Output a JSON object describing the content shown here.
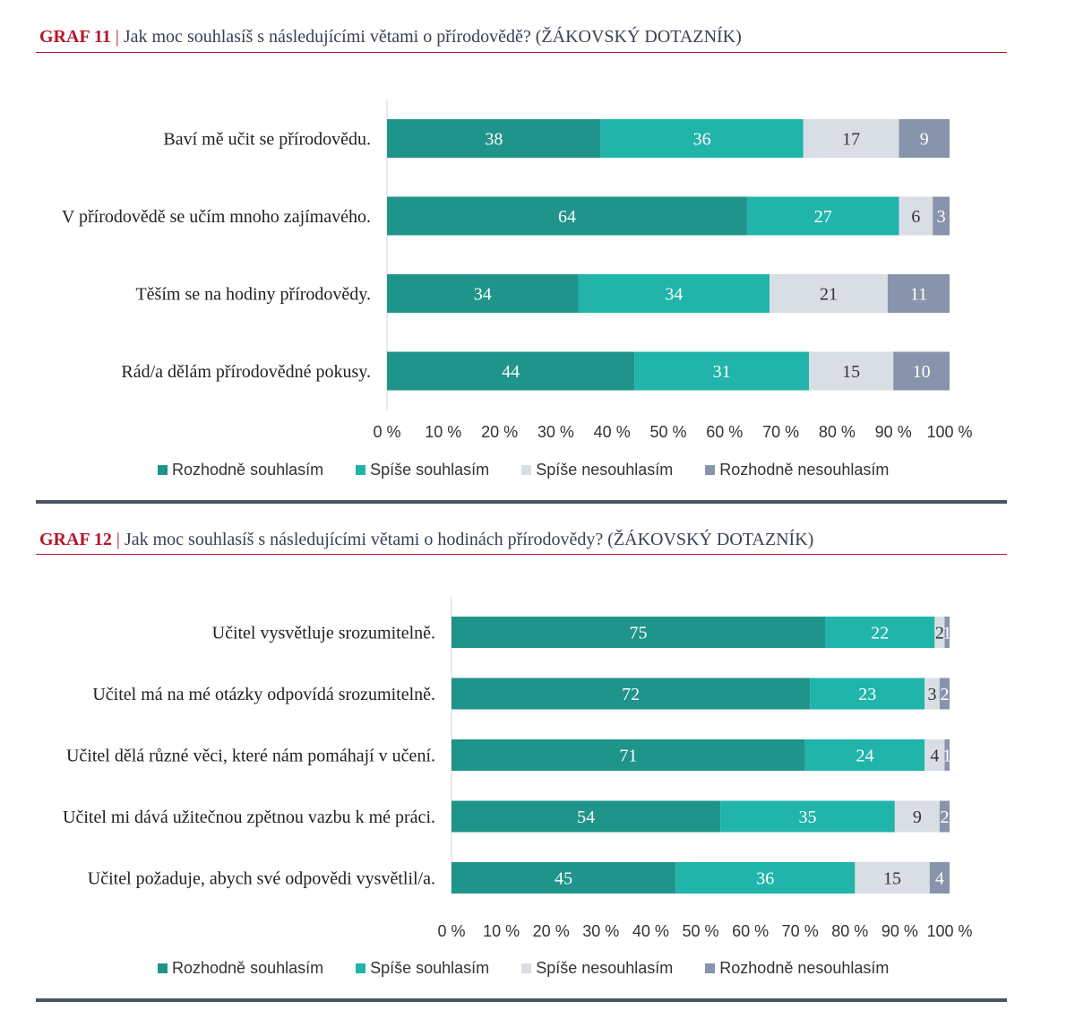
{
  "colors": {
    "strongly_agree": "#1f948b",
    "agree": "#20b4ab",
    "disagree": "#d9dee5",
    "strongly_disagree": "#8894ab"
  },
  "legend": [
    "Rozhodně souhlasím",
    "Spíše souhlasím",
    "Spíše nesouhlasím",
    "Rozhodně nesouhlasím"
  ],
  "chart_data": [
    {
      "type": "bar",
      "orientation": "horizontal-stacked-100",
      "label": "GRAF 11",
      "title": "Jak moc souhlasíš s následujícími větami o přírodovědě? (ŽÁKOVSKÝ DOTAZNÍK)",
      "categories": [
        "Baví mě učit se přírodovědu.",
        "V přírodovědě se učím mnoho zajímavého.",
        "Těším se na hodiny přírodovědy.",
        "Rád/a dělám přírodovědné pokusy."
      ],
      "series": [
        {
          "name": "Rozhodně souhlasím",
          "values": [
            38,
            64,
            34,
            44
          ]
        },
        {
          "name": "Spíše souhlasím",
          "values": [
            36,
            27,
            34,
            31
          ]
        },
        {
          "name": "Spíše nesouhlasím",
          "values": [
            17,
            6,
            21,
            15
          ]
        },
        {
          "name": "Rozhodně nesouhlasím",
          "values": [
            9,
            3,
            11,
            10
          ]
        }
      ],
      "xticks": [
        "0 %",
        "10 %",
        "20 %",
        "30 %",
        "40 %",
        "50 %",
        "60 %",
        "70 %",
        "80 %",
        "90 %",
        "100 %"
      ],
      "xlim": [
        0,
        100
      ]
    },
    {
      "type": "bar",
      "orientation": "horizontal-stacked-100",
      "label": "GRAF 12",
      "title": "Jak moc souhlasíš s následujícími větami o hodinách přírodovědy? (ŽÁKOVSKÝ DOTAZNÍK)",
      "categories": [
        "Učitel vysvětluje srozumitelně.",
        "Učitel má na mé otázky odpovídá srozumitelně.",
        "Učitel dělá různé věci, které nám pomáhají v učení.",
        "Učitel mi dává užitečnou zpětnou vazbu k mé práci.",
        "Učitel požaduje, abych své odpovědi vysvětlil/a."
      ],
      "series": [
        {
          "name": "Rozhodně souhlasím",
          "values": [
            75,
            72,
            71,
            54,
            45
          ]
        },
        {
          "name": "Spíše souhlasím",
          "values": [
            22,
            23,
            24,
            35,
            36
          ]
        },
        {
          "name": "Spíše nesouhlasím",
          "values": [
            2,
            3,
            4,
            9,
            15
          ]
        },
        {
          "name": "Rozhodně nesouhlasím",
          "values": [
            1,
            2,
            1,
            2,
            4
          ]
        }
      ],
      "xticks": [
        "0 %",
        "10 %",
        "20 %",
        "30 %",
        "40 %",
        "50 %",
        "60 %",
        "70 %",
        "80 %",
        "90 %",
        "100 %"
      ],
      "xlim": [
        0,
        100
      ]
    }
  ]
}
